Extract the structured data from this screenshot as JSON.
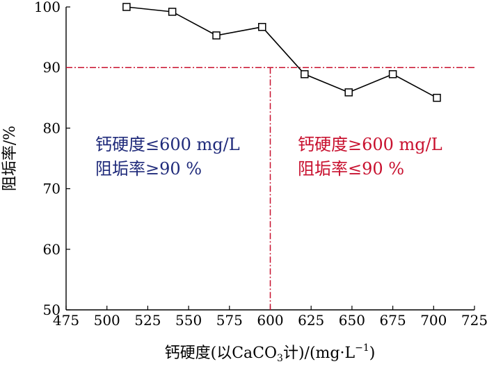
{
  "chart_data": {
    "type": "line",
    "x": [
      512,
      540,
      567,
      595,
      621,
      648,
      675,
      702
    ],
    "y": [
      100,
      99.2,
      95.3,
      96.7,
      88.9,
      85.9,
      88.9,
      85.0
    ],
    "xlim": [
      475,
      725
    ],
    "ylim": [
      50,
      100
    ],
    "xticks": [
      "475",
      "500",
      "525",
      "550",
      "575",
      "600",
      "625",
      "650",
      "675",
      "700",
      "725"
    ],
    "yticks": [
      "50",
      "60",
      "70",
      "80",
      "90",
      "100"
    ],
    "ylabel": "阻垢率/%",
    "xlabel": {
      "part1": "钙硬度(以CaCO",
      "sub": "3",
      "part2": "计)/(mg·L",
      "sup": "−1",
      "part3": ")"
    },
    "reference_lines": {
      "horizontal_y": 90,
      "vertical_x": 600
    },
    "annotations": {
      "left": {
        "line1": "钙硬度≤600 mg/L",
        "line2": "阻垢率≥90 %"
      },
      "right": {
        "line1": "钙硬度≥600 mg/L",
        "line2": "阻垢率≤90 %"
      }
    },
    "grid": false,
    "marker": "open-square",
    "colors": {
      "series": "#000000",
      "reference": "#c8102e",
      "left_text": "#1f2a7a",
      "right_text": "#c8102e"
    }
  }
}
